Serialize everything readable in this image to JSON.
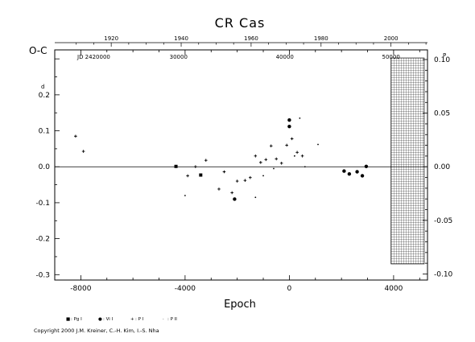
{
  "chart_data": {
    "type": "scatter",
    "title": "CR Cas",
    "xlabel": "Epoch",
    "ylabel": "O-C",
    "ylabel_unit": "d",
    "xlim": [
      -9000,
      5300
    ],
    "ylim": [
      -0.315,
      0.325
    ],
    "x_ticks": [
      -8000,
      -4000,
      0,
      4000
    ],
    "x_tick_labels": [
      "-8000",
      "-4000",
      "0",
      "4000"
    ],
    "y_ticks": [
      -0.3,
      -0.2,
      -0.1,
      0.0,
      0.1,
      0.2
    ],
    "y_tick_labels": [
      "-0.3",
      "-0.2",
      "-0.1",
      "0.0",
      "0.1",
      "0.2"
    ],
    "top_axis_label": "JD 2420000",
    "top_axis_ticks": [
      30000,
      40000,
      50000
    ],
    "top_axis_tick_labels": [
      "30000",
      "40000",
      "50000"
    ],
    "year_axis_ticks": [
      1920,
      1940,
      1960,
      1980,
      2000
    ],
    "year_axis_tick_labels": [
      "1920",
      "1940",
      "1960",
      "1980",
      "2000"
    ],
    "right_axis_ticks": [
      -0.1,
      -0.05,
      0.0,
      0.05,
      0.1
    ],
    "right_axis_tick_labels": [
      "-0.10",
      "-0.05",
      "0.00",
      "0.05",
      "0.10"
    ],
    "right_axis_unit": "P",
    "future_region_start": 3900,
    "series": [
      {
        "name": "Pg I",
        "marker": "square",
        "x": [
          -4350,
          -3400
        ],
        "y": [
          0.001,
          -0.023
        ]
      },
      {
        "name": "Vi I",
        "marker": "circle",
        "x": [
          -2100,
          0,
          0,
          2100,
          2300,
          2600,
          2800,
          2950
        ],
        "y": [
          -0.09,
          0.13,
          0.112,
          -0.012,
          -0.02,
          -0.014,
          -0.025,
          0.001
        ]
      },
      {
        "name": "Pe I",
        "marker": "plus",
        "x": [
          -8200,
          -7900,
          -3900,
          -3600,
          -3200,
          -2700,
          -2500,
          -2200,
          -2000,
          -1700,
          -1500,
          -1300,
          -1100,
          -900,
          -700,
          -500,
          -300,
          -100,
          100,
          300,
          500
        ],
        "y": [
          0.085,
          0.043,
          -0.025,
          0.0,
          0.018,
          -0.062,
          -0.014,
          -0.072,
          -0.04,
          -0.038,
          -0.03,
          0.03,
          0.012,
          0.02,
          0.058,
          0.022,
          0.01,
          0.06,
          0.078,
          0.04,
          0.03
        ]
      },
      {
        "name": "P II",
        "marker": "dot",
        "x": [
          -4000,
          -1300,
          -1000,
          -600,
          200,
          400,
          600,
          1100
        ],
        "y": [
          -0.08,
          -0.085,
          -0.025,
          -0.005,
          0.03,
          0.135,
          0.0,
          0.062
        ]
      }
    ],
    "legend": [
      {
        "symbol": "■",
        "label": ": Pg I"
      },
      {
        "symbol": "●",
        "label": ": Vi I"
      },
      {
        "symbol": "+",
        "label": ": P I"
      },
      {
        "symbol": "·",
        "label": ": P II"
      }
    ],
    "legend_position": "bottom-left"
  },
  "copyright": "Copyright 2000 J.M. Kreiner, C.-H. Kim, I.-S. Nha"
}
